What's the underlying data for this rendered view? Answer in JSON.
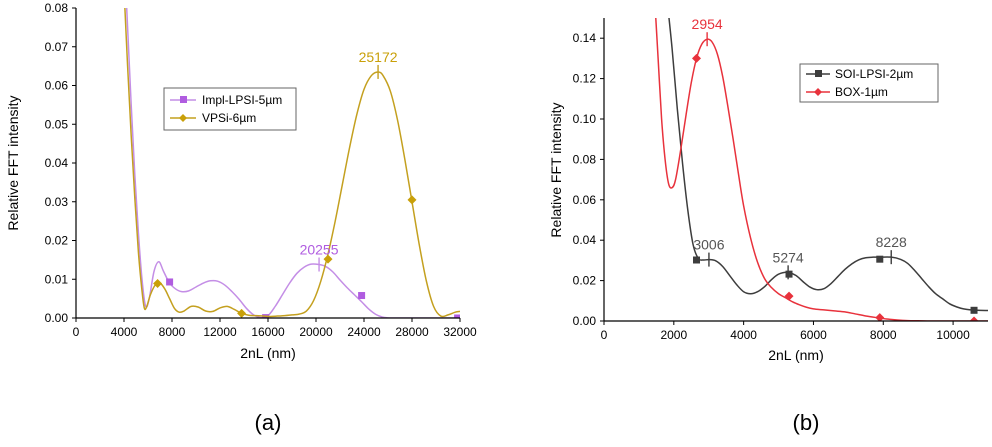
{
  "panels": [
    {
      "panel_label": "(a)",
      "chart_data": {
        "type": "line",
        "title": "",
        "xlabel": "2nL (nm)",
        "ylabel": "Relative FFT intensity",
        "xlim": [
          0,
          32000
        ],
        "ylim": [
          0,
          0.08
        ],
        "x_ticks": [
          0,
          4000,
          8000,
          12000,
          16000,
          20000,
          24000,
          28000,
          32000
        ],
        "y_ticks": [
          0.0,
          0.01,
          0.02,
          0.03,
          0.04,
          0.05,
          0.06,
          0.07,
          0.08
        ],
        "x_tick_labels": [
          "0",
          "4000",
          "8000",
          "12000",
          "16000",
          "20000",
          "24000",
          "28000",
          "32000"
        ],
        "y_tick_labels": [
          "0.00",
          "0.01",
          "0.02",
          "0.03",
          "0.04",
          "0.05",
          "0.06",
          "0.07",
          "0.08"
        ],
        "legend_position": "top-center",
        "series": [
          {
            "name": "Impl-LPSI-5µm",
            "color": "#b05ce0",
            "line_color": "#c48ee6",
            "marker": "square",
            "x": [
              4000,
              4300,
              4600,
              4900,
              5200,
              5500,
              5800,
              6100,
              6500,
              6900,
              7300,
              7800,
              8300,
              8800,
              9400,
              10000,
              10600,
              11200,
              11800,
              12400,
              13000,
              13600,
              14200,
              14800,
              15400,
              16000,
              16600,
              17200,
              17800,
              18400,
              19000,
              19600,
              20255,
              20800,
              21400,
              22000,
              22600,
              23200,
              23800,
              24400,
              25000,
              25600,
              26200,
              26800,
              27400,
              28000,
              28600,
              29200,
              29800,
              30400,
              31000,
              31600,
              32000
            ],
            "y": [
              0.095,
              0.075,
              0.055,
              0.037,
              0.022,
              0.01,
              0.003,
              0.005,
              0.012,
              0.0145,
              0.012,
              0.009,
              0.0075,
              0.0068,
              0.007,
              0.008,
              0.009,
              0.0096,
              0.0095,
              0.0085,
              0.0068,
              0.0048,
              0.0025,
              0.0008,
              0.0001,
              0.0006,
              0.003,
              0.006,
              0.009,
              0.0115,
              0.0131,
              0.0139,
              0.0138,
              0.0133,
              0.0119,
              0.0098,
              0.0078,
              0.006,
              0.0042,
              0.0023,
              0.0009,
              0.0002,
              0.0,
              0.0,
              0.0,
              0.0,
              0.0,
              0.0,
              0.0,
              0.0,
              0.0,
              0.0,
              0.0
            ],
            "marker_points": [
              [
                7800,
                0.0093
              ],
              [
                15800,
                0.0001
              ],
              [
                23800,
                0.0058
              ],
              [
                31800,
                0.0
              ]
            ],
            "peak": {
              "x": 20255,
              "y": 0.0138,
              "label": "20255"
            }
          },
          {
            "name": "VPSi-6µm",
            "color": "#c9a009",
            "line_color": "#c4a01f",
            "marker": "diamond",
            "x": [
              4000,
              4300,
              4600,
              4900,
              5200,
              5500,
              5700,
              5900,
              6200,
              6600,
              7000,
              7400,
              7800,
              8200,
              8600,
              9000,
              9600,
              10200,
              10800,
              11400,
              12000,
              12600,
              13200,
              13800,
              14400,
              15000,
              15600,
              16200,
              16800,
              17400,
              18000,
              18600,
              19200,
              19800,
              20400,
              21000,
              21600,
              22200,
              22800,
              23400,
              24000,
              24600,
              25172,
              25600,
              26200,
              26800,
              27400,
              28000,
              28600,
              29200,
              29800,
              30400,
              31000,
              31600,
              32000
            ],
            "y": [
              0.085,
              0.065,
              0.047,
              0.031,
              0.017,
              0.007,
              0.0025,
              0.003,
              0.006,
              0.0085,
              0.009,
              0.0075,
              0.005,
              0.0025,
              0.0015,
              0.0018,
              0.003,
              0.0028,
              0.0018,
              0.0017,
              0.0026,
              0.003,
              0.0022,
              0.0012,
              0.0007,
              0.0006,
              0.0005,
              0.0004,
              0.0005,
              0.0006,
              0.0008,
              0.001,
              0.0018,
              0.0045,
              0.0095,
              0.0165,
              0.025,
              0.0345,
              0.044,
              0.0525,
              0.059,
              0.0625,
              0.0635,
              0.0625,
              0.0585,
              0.051,
              0.041,
              0.03,
              0.019,
              0.0095,
              0.003,
              0.0005,
              0.0008,
              0.0015,
              0.0017
            ],
            "marker_points": [
              [
                6800,
                0.0089
              ],
              [
                13800,
                0.0012
              ],
              [
                21000,
                0.0152
              ],
              [
                28000,
                0.0305
              ]
            ],
            "peak": {
              "x": 25172,
              "y": 0.0635,
              "label": "25172"
            }
          }
        ]
      }
    },
    {
      "panel_label": "(b)",
      "chart_data": {
        "type": "line",
        "title": "",
        "xlabel": "2nL (nm)",
        "ylabel": "Relative FFT intensity",
        "xlim": [
          0,
          11000
        ],
        "ylim": [
          0,
          0.15
        ],
        "x_ticks": [
          0,
          2000,
          4000,
          6000,
          8000,
          10000
        ],
        "y_ticks": [
          0.0,
          0.02,
          0.04,
          0.06,
          0.08,
          0.1,
          0.12,
          0.14
        ],
        "x_tick_labels": [
          "0",
          "2000",
          "4000",
          "6000",
          "8000",
          "10000"
        ],
        "y_tick_labels": [
          "0.00",
          "0.02",
          "0.04",
          "0.06",
          "0.08",
          "0.10",
          "0.12",
          "0.14"
        ],
        "legend_position": "top-right",
        "series": [
          {
            "name": "SOI-LPSI-2µm",
            "color": "#3d3d3d",
            "line_color": "#3d3d3d",
            "marker": "square",
            "x": [
              1800,
              1950,
              2100,
              2250,
              2400,
              2550,
              2700,
              2850,
              3006,
              3200,
              3400,
              3600,
              3800,
              4000,
              4200,
              4400,
              4600,
              4800,
              5000,
              5274,
              5500,
              5700,
              5900,
              6100,
              6300,
              6500,
              6700,
              6900,
              7100,
              7300,
              7500,
              7700,
              7900,
              8228,
              8500,
              8700,
              8900,
              9100,
              9300,
              9500,
              9700,
              9900,
              10100,
              10300,
              10500,
              10700,
              11000
            ],
            "y": [
              0.16,
              0.135,
              0.105,
              0.078,
              0.055,
              0.038,
              0.031,
              0.0302,
              0.0304,
              0.0298,
              0.027,
              0.0225,
              0.018,
              0.0145,
              0.0135,
              0.0145,
              0.017,
              0.0205,
              0.0232,
              0.0241,
              0.0225,
              0.0195,
              0.0168,
              0.0155,
              0.016,
              0.0185,
              0.022,
              0.0255,
              0.0283,
              0.0303,
              0.0313,
              0.0316,
              0.0316,
              0.0316,
              0.0305,
              0.0285,
              0.025,
              0.021,
              0.017,
              0.0135,
              0.011,
              0.0085,
              0.007,
              0.006,
              0.0055,
              0.0053,
              0.0052
            ],
            "marker_points": [
              [
                2650,
                0.0302
              ],
              [
                5300,
                0.0232
              ],
              [
                7900,
                0.0306
              ],
              [
                10600,
                0.0053
              ]
            ],
            "peaks": [
              {
                "x": 3006,
                "y": 0.0304,
                "label": "3006"
              },
              {
                "x": 5274,
                "y": 0.0241,
                "label": "5274"
              },
              {
                "x": 8228,
                "y": 0.0316,
                "label": "8228"
              }
            ]
          },
          {
            "name": "BOX-1µm",
            "color": "#e8323c",
            "line_color": "#e8323c",
            "marker": "diamond",
            "x": [
              1450,
              1550,
              1650,
              1750,
              1850,
              1950,
              2050,
              2200,
              2350,
              2500,
              2650,
              2800,
              2954,
              3100,
              3250,
              3400,
              3550,
              3700,
              3850,
              4000,
              4200,
              4400,
              4600,
              4800,
              5000,
              5200,
              5400,
              5600,
              5800,
              6000,
              6300,
              6600,
              6900,
              7200,
              7500,
              7800,
              8100,
              8400,
              8700,
              9000,
              9400,
              9800,
              10200,
              10600,
              11000
            ],
            "y": [
              0.16,
              0.13,
              0.1,
              0.08,
              0.068,
              0.066,
              0.07,
              0.085,
              0.102,
              0.118,
              0.13,
              0.137,
              0.1395,
              0.138,
              0.132,
              0.121,
              0.106,
              0.09,
              0.073,
              0.057,
              0.041,
              0.029,
              0.021,
              0.0165,
              0.0135,
              0.0115,
              0.0095,
              0.008,
              0.0068,
              0.006,
              0.0055,
              0.005,
              0.0045,
              0.0035,
              0.0025,
              0.0017,
              0.001,
              0.0005,
              0.0002,
              0.0001,
              0.0,
              0.0,
              0.0,
              0.0,
              0.0
            ],
            "marker_points": [
              [
                2650,
                0.13
              ],
              [
                5300,
                0.0123
              ],
              [
                7900,
                0.0017
              ],
              [
                10600,
                0.0
              ]
            ],
            "peak": {
              "x": 2954,
              "y": 0.1395,
              "label": "2954"
            }
          }
        ]
      }
    }
  ]
}
